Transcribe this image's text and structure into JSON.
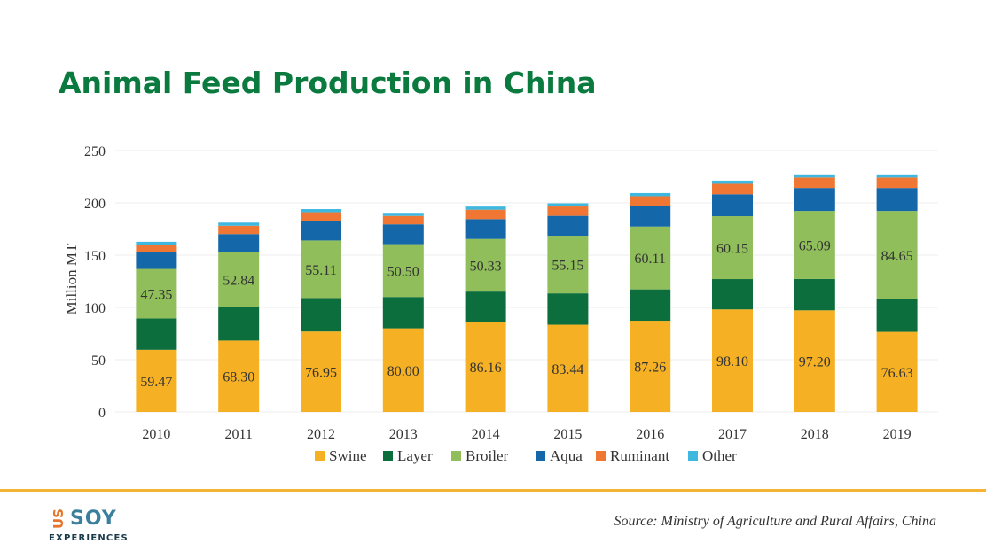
{
  "title": "Animal Feed Production in China",
  "colors": {
    "title": "#0a7a3f",
    "Swine": "#f5b123",
    "Layer": "#0c6e3c",
    "Broiler": "#8fbe5a",
    "Aqua": "#1467a8",
    "Ruminant": "#ef7733",
    "Other": "#3fb8df",
    "footer_rule": "#f2b432",
    "axis_text": "#333333",
    "grid": "#eeeeee",
    "logo_us": "#e6742b",
    "logo_soy": "#3b7f9d",
    "logo_text": "#1a3a4a"
  },
  "chart_data": {
    "type": "bar",
    "stacked": true,
    "categories": [
      "2010",
      "2011",
      "2012",
      "2013",
      "2014",
      "2015",
      "2016",
      "2017",
      "2018",
      "2019"
    ],
    "series": [
      {
        "name": "Swine",
        "values": [
          59.47,
          68.3,
          76.95,
          80.0,
          86.16,
          83.44,
          87.26,
          98.1,
          97.2,
          76.63
        ],
        "labels": [
          "59.47",
          "68.30",
          "76.95",
          "80.00",
          "86.16",
          "83.44",
          "87.26",
          "98.10",
          "97.20",
          "76.63"
        ]
      },
      {
        "name": "Layer",
        "values": [
          30,
          32,
          32,
          30,
          29,
          30,
          30,
          29,
          30,
          31
        ]
      },
      {
        "name": "Broiler",
        "values": [
          47.35,
          52.84,
          55.11,
          50.5,
          50.33,
          55.15,
          60.11,
          60.15,
          65.09,
          84.65
        ],
        "labels": [
          "47.35",
          "52.84",
          "55.11",
          "50.50",
          "50.33",
          "55.15",
          "60.11",
          "60.15",
          "65.09",
          "84.65"
        ]
      },
      {
        "name": "Aqua",
        "values": [
          16,
          17,
          19,
          19,
          19,
          19,
          20,
          21,
          22,
          22
        ]
      },
      {
        "name": "Ruminant",
        "values": [
          7,
          8,
          8,
          8,
          9,
          9,
          9,
          10,
          10,
          10
        ]
      },
      {
        "name": "Other",
        "values": [
          3,
          3,
          3,
          3,
          3,
          3,
          3,
          3,
          3,
          3
        ]
      }
    ],
    "title": "",
    "xlabel": "",
    "ylabel": "Million MT",
    "ylim": [
      0,
      250
    ],
    "yticks": [
      "0",
      "50",
      "100",
      "150",
      "200",
      "250"
    ],
    "grid": true,
    "legend": "bottom"
  },
  "footer": {
    "logo_us": "US",
    "logo_soy": "SOY",
    "logo_sub": "EXPERIENCES",
    "source": "Source: Ministry of Agriculture and Rural Affairs, China"
  }
}
